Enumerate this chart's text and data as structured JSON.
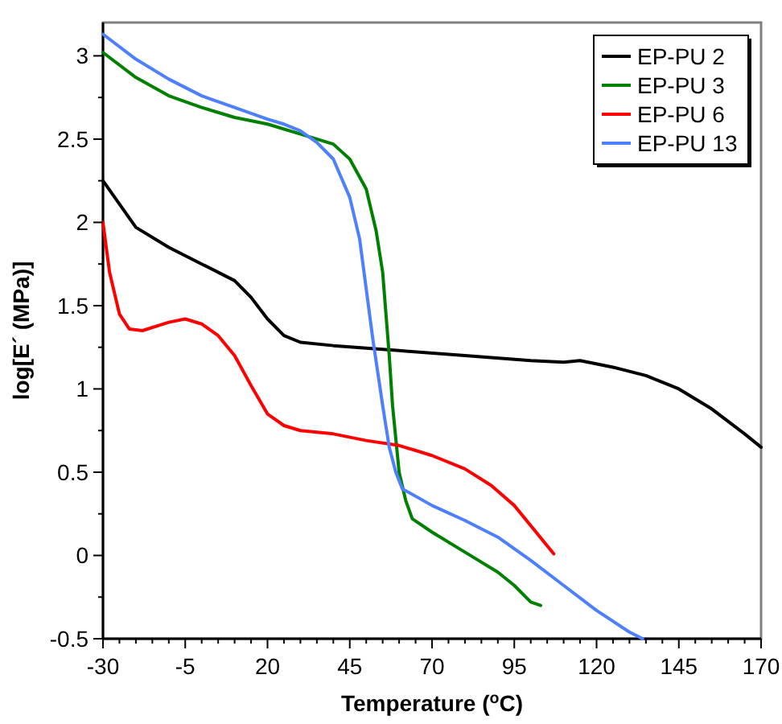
{
  "chart_data": {
    "type": "line",
    "xlabel": "Temperature ($^{o}$C)",
    "ylabel": "log[E´ (MPa)]",
    "xlim": [
      -30,
      170
    ],
    "xticks": [
      -30,
      -5,
      20,
      45,
      70,
      95,
      120,
      145,
      170
    ],
    "ylim": [
      -0.5,
      3.2
    ],
    "yticks": [
      -0.5,
      0,
      0.5,
      1,
      1.5,
      2,
      2.5,
      3
    ],
    "grid": false,
    "legend": "top right",
    "marker": "none",
    "line_style": "solid",
    "series": [
      {
        "name": "EP-PU 2",
        "color": "#000000",
        "x": [
          -30,
          -20,
          -10,
          0,
          10,
          15,
          20,
          25,
          30,
          40,
          60,
          80,
          100,
          110,
          115,
          125,
          135,
          145,
          155,
          165,
          170
        ],
        "values": [
          2.25,
          1.97,
          1.85,
          1.75,
          1.65,
          1.55,
          1.42,
          1.32,
          1.28,
          1.26,
          1.23,
          1.2,
          1.17,
          1.16,
          1.17,
          1.13,
          1.08,
          1.0,
          0.88,
          0.73,
          0.65
        ]
      },
      {
        "name": "EP-PU 3",
        "color": "#008000",
        "x": [
          -30,
          -20,
          -10,
          0,
          10,
          20,
          30,
          40,
          45,
          50,
          53,
          55,
          57,
          58,
          60,
          62,
          64,
          70,
          80,
          90,
          95,
          100,
          103
        ],
        "values": [
          3.02,
          2.87,
          2.76,
          2.69,
          2.63,
          2.59,
          2.53,
          2.47,
          2.38,
          2.2,
          1.95,
          1.7,
          1.2,
          0.9,
          0.5,
          0.33,
          0.22,
          0.14,
          0.02,
          -0.1,
          -0.18,
          -0.28,
          -0.3
        ]
      },
      {
        "name": "EP-PU 6",
        "color": "#ff0000",
        "x": [
          -30,
          -28,
          -25,
          -22,
          -18,
          -10,
          -5,
          0,
          5,
          10,
          15,
          20,
          25,
          30,
          40,
          50,
          60,
          70,
          80,
          88,
          95,
          107
        ],
        "values": [
          2.0,
          1.7,
          1.45,
          1.36,
          1.35,
          1.4,
          1.42,
          1.39,
          1.32,
          1.2,
          1.02,
          0.85,
          0.78,
          0.75,
          0.73,
          0.69,
          0.66,
          0.6,
          0.52,
          0.42,
          0.3,
          0.01
        ]
      },
      {
        "name": "EP-PU 13",
        "color": "#4d7fff",
        "x": [
          -30,
          -20,
          -10,
          0,
          10,
          20,
          25,
          30,
          35,
          40,
          45,
          48,
          50,
          52,
          55,
          57,
          59,
          61,
          70,
          80,
          90,
          100,
          110,
          120,
          130,
          134
        ],
        "values": [
          3.13,
          2.98,
          2.86,
          2.76,
          2.69,
          2.62,
          2.59,
          2.55,
          2.48,
          2.38,
          2.15,
          1.9,
          1.6,
          1.3,
          0.9,
          0.65,
          0.5,
          0.4,
          0.3,
          0.21,
          0.11,
          -0.03,
          -0.18,
          -0.33,
          -0.46,
          -0.5
        ]
      }
    ]
  }
}
